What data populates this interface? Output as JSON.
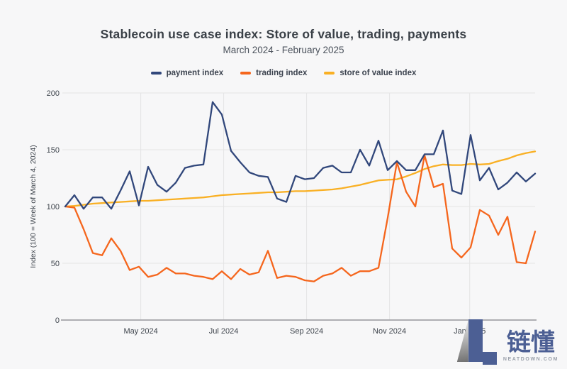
{
  "header": {
    "title": "Stablecoin use case index: Store of value, trading, payments",
    "subtitle": "March 2024 - February 2025"
  },
  "legend": [
    {
      "label": "payment index",
      "color": "#31477b"
    },
    {
      "label": "trading index",
      "color": "#f5661d"
    },
    {
      "label": "store of value index",
      "color": "#f9b024"
    }
  ],
  "logo": {
    "cjk_name": "链懂",
    "domain": "NEATDOWN.COM",
    "accent_color": "#4c5f94"
  },
  "chart_data": {
    "type": "line",
    "title": "Stablecoin use case index: Store of value, trading, payments",
    "subtitle": "March 2024 - February 2025",
    "xlabel": "",
    "ylabel": "Index (100 = Week of March 4, 2024)",
    "ylim": [
      0,
      200
    ],
    "y_ticks": [
      0,
      50,
      100,
      150,
      200
    ],
    "grid": true,
    "legend_position": "top",
    "x_description": "weekly data points, week 0 = week of March 4, 2024 through February 2025 (52 weeks)",
    "x_ticks": [
      {
        "label": "May 2024",
        "week": 8.2
      },
      {
        "label": "Jul 2024",
        "week": 17.2
      },
      {
        "label": "Sep 2024",
        "week": 26.2
      },
      {
        "label": "Nov 2024",
        "week": 35.2
      },
      {
        "label": "Jan 2025",
        "week": 43.9
      }
    ],
    "colors": {
      "grid": "#e4e4e5",
      "axis": "#aeaeb2",
      "tick_text": "#3f454d"
    },
    "series": [
      {
        "name": "payment index",
        "color": "#31477b",
        "values": [
          100,
          110,
          98,
          108,
          108,
          98,
          114,
          131,
          101,
          135,
          119,
          113,
          121,
          134,
          136,
          137,
          192,
          181,
          149,
          139,
          130,
          127,
          126,
          107,
          104,
          127,
          124,
          125,
          134,
          136,
          130,
          130,
          150,
          136,
          158,
          132,
          140,
          132,
          132,
          146,
          146,
          167,
          114,
          111,
          163,
          123,
          134,
          115,
          121,
          130,
          122,
          129
        ]
      },
      {
        "name": "trading index",
        "color": "#f5661d",
        "values": [
          100,
          99,
          80,
          59,
          57,
          72,
          61,
          44,
          47,
          38,
          40,
          46,
          41,
          41,
          39,
          38,
          36,
          43,
          36,
          45,
          40,
          42,
          61,
          37,
          39,
          38,
          35,
          34,
          39,
          41,
          46,
          39,
          43,
          43,
          46,
          90,
          139,
          113,
          100,
          145,
          117,
          120,
          63,
          55,
          64,
          97,
          92,
          75,
          91,
          51,
          50,
          78
        ]
      },
      {
        "name": "store of value index",
        "color": "#f9b024",
        "values": [
          100,
          100.5,
          101.5,
          102.5,
          103,
          103.5,
          104,
          104.5,
          105,
          105,
          105.5,
          106,
          106.5,
          107,
          107.5,
          108,
          109,
          110,
          110.5,
          111,
          111.5,
          112,
          112.5,
          112.5,
          113,
          113.5,
          113.5,
          114,
          114.5,
          115,
          116,
          117.5,
          119,
          121,
          123,
          123.5,
          124,
          126.5,
          129.5,
          133,
          135.5,
          137,
          136.5,
          136.5,
          137.5,
          137,
          137.5,
          140,
          142,
          145,
          147,
          148.5
        ]
      }
    ]
  }
}
